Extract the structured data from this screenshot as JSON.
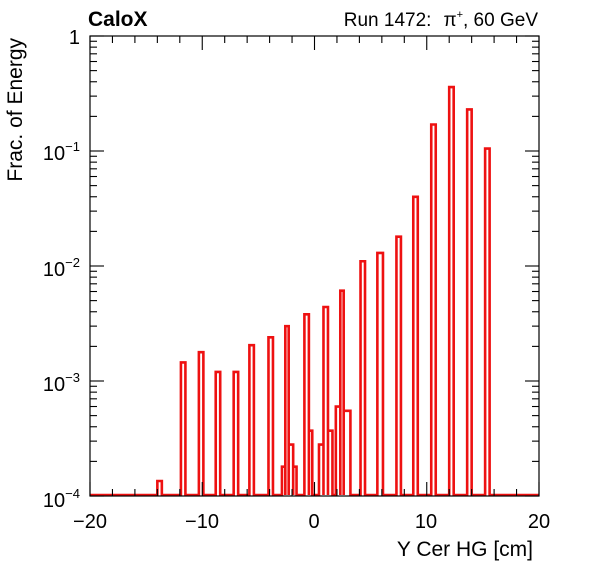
{
  "header": {
    "left_label": "CaloX",
    "right_label_prefix": "Run 1472:",
    "right_label_particle": "π",
    "right_label_charge": "+",
    "right_label_suffix": ", 60 GeV"
  },
  "chart_data": {
    "type": "histogram",
    "xlabel": "Y Cer HG [cm]",
    "ylabel": "Frac. of Energy",
    "xlim": [
      -20,
      20
    ],
    "ylim": [
      0.0001,
      1
    ],
    "yscale": "log",
    "grid": false,
    "x_ticks": [
      -20,
      -10,
      0,
      10,
      20
    ],
    "x_tick_labels": [
      "−20",
      "−10",
      "0",
      "10",
      "20"
    ],
    "y_tick_labels": [
      {
        "value": 1,
        "base": "1",
        "exp": ""
      },
      {
        "value": 0.1,
        "base": "10",
        "exp": "−1"
      },
      {
        "value": 0.01,
        "base": "10",
        "exp": "−2"
      },
      {
        "value": 0.001,
        "base": "10",
        "exp": "−3"
      },
      {
        "value": 0.0001,
        "base": "10",
        "exp": "−4"
      }
    ],
    "line_color": "#ee1111",
    "bins": [
      {
        "x0": -14.0,
        "x1": -13.6,
        "value": 0.000135
      },
      {
        "x0": -11.9,
        "x1": -11.5,
        "value": 0.00145
      },
      {
        "x0": -10.3,
        "x1": -9.9,
        "value": 0.00178
      },
      {
        "x0": -8.8,
        "x1": -8.4,
        "value": 0.0012
      },
      {
        "x0": -7.2,
        "x1": -6.8,
        "value": 0.0012
      },
      {
        "x0": -5.8,
        "x1": -5.4,
        "value": 0.00205
      },
      {
        "x0": -4.1,
        "x1": -3.7,
        "value": 0.0024
      },
      {
        "x0": -2.9,
        "x1": -2.6,
        "value": 0.00018
      },
      {
        "x0": -2.6,
        "x1": -2.3,
        "value": 0.003
      },
      {
        "x0": -2.3,
        "x1": -1.9,
        "value": 0.00028
      },
      {
        "x0": -1.9,
        "x1": -1.6,
        "value": 0.00018
      },
      {
        "x0": -0.9,
        "x1": -0.5,
        "value": 0.0038
      },
      {
        "x0": -0.5,
        "x1": -0.2,
        "value": 0.00037
      },
      {
        "x0": 0.4,
        "x1": 0.8,
        "value": 0.00028
      },
      {
        "x0": 0.8,
        "x1": 1.2,
        "value": 0.0044
      },
      {
        "x0": 1.2,
        "x1": 1.6,
        "value": 0.00037
      },
      {
        "x0": 1.9,
        "x1": 2.3,
        "value": 0.0006
      },
      {
        "x0": 2.3,
        "x1": 2.6,
        "value": 0.0061
      },
      {
        "x0": 2.6,
        "x1": 3.2,
        "value": 0.00055
      },
      {
        "x0": 4.1,
        "x1": 4.5,
        "value": 0.011
      },
      {
        "x0": 5.6,
        "x1": 6.1,
        "value": 0.013
      },
      {
        "x0": 7.3,
        "x1": 7.7,
        "value": 0.018
      },
      {
        "x0": 8.8,
        "x1": 9.2,
        "value": 0.04
      },
      {
        "x0": 10.4,
        "x1": 10.8,
        "value": 0.17
      },
      {
        "x0": 12.0,
        "x1": 12.4,
        "value": 0.36
      },
      {
        "x0": 13.6,
        "x1": 14.0,
        "value": 0.23
      },
      {
        "x0": 15.2,
        "x1": 15.6,
        "value": 0.105
      }
    ]
  }
}
